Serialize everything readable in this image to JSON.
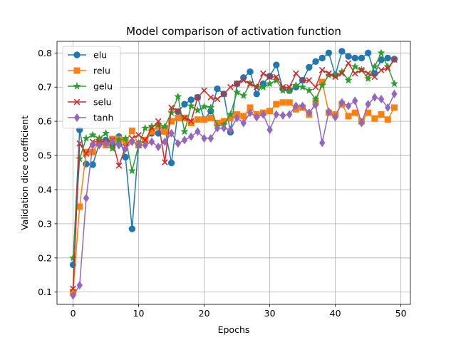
{
  "chart_data": {
    "type": "line",
    "title": "Model comparison of activation function",
    "xlabel": "Epochs",
    "ylabel": "Validation dice coefficient",
    "xlim": [
      -2.45,
      51.45
    ],
    "ylim": [
      0.064,
      0.834
    ],
    "xticks": [
      0,
      10,
      20,
      30,
      40,
      50
    ],
    "yticks": [
      0.1,
      0.2,
      0.3,
      0.4,
      0.5,
      0.6,
      0.7,
      0.8
    ],
    "ytick_labels": [
      "0.1",
      "0.2",
      "0.3",
      "0.4",
      "0.5",
      "0.6",
      "0.7",
      "0.8"
    ],
    "grid": true,
    "legend": "top-left",
    "x": [
      0,
      1,
      2,
      3,
      4,
      5,
      6,
      7,
      8,
      9,
      10,
      11,
      12,
      13,
      14,
      15,
      16,
      17,
      18,
      19,
      20,
      21,
      22,
      23,
      24,
      25,
      26,
      27,
      28,
      29,
      30,
      31,
      32,
      33,
      34,
      35,
      36,
      37,
      38,
      39,
      40,
      41,
      42,
      43,
      44,
      45,
      46,
      47,
      48,
      49
    ],
    "series": [
      {
        "name": "elu",
        "color": "#1f77b4",
        "marker": "circle",
        "values": [
          0.18,
          0.575,
          0.475,
          0.473,
          0.535,
          0.545,
          0.53,
          0.555,
          0.495,
          0.285,
          0.535,
          0.545,
          0.565,
          0.565,
          0.58,
          0.478,
          0.628,
          0.65,
          0.663,
          0.67,
          0.605,
          0.63,
          0.695,
          0.68,
          0.568,
          0.71,
          0.728,
          0.745,
          0.68,
          0.71,
          0.732,
          0.765,
          0.695,
          0.69,
          0.7,
          0.72,
          0.758,
          0.775,
          0.785,
          0.8,
          0.735,
          0.805,
          0.79,
          0.785,
          0.785,
          0.8,
          0.74,
          0.78,
          0.785,
          0.782
        ]
      },
      {
        "name": "relu",
        "color": "#ff7f0e",
        "marker": "square",
        "values": [
          0.1,
          0.35,
          0.51,
          0.51,
          0.54,
          0.53,
          0.548,
          0.548,
          0.54,
          0.572,
          0.53,
          0.545,
          0.57,
          0.585,
          0.57,
          0.6,
          0.61,
          0.61,
          0.595,
          0.605,
          0.605,
          0.61,
          0.595,
          0.6,
          0.61,
          0.62,
          0.615,
          0.64,
          0.62,
          0.625,
          0.63,
          0.65,
          0.655,
          0.655,
          0.635,
          0.64,
          0.62,
          0.655,
          0.715,
          0.625,
          0.62,
          0.65,
          0.615,
          0.625,
          0.6,
          0.625,
          0.608,
          0.62,
          0.605,
          0.64
        ]
      },
      {
        "name": "gelu",
        "color": "#2ca02c",
        "marker": "star",
        "values": [
          0.2,
          0.49,
          0.55,
          0.56,
          0.55,
          0.565,
          0.52,
          0.545,
          0.55,
          0.455,
          0.53,
          0.58,
          0.585,
          0.59,
          0.585,
          0.625,
          0.672,
          0.57,
          0.645,
          0.632,
          0.643,
          0.64,
          0.585,
          0.59,
          0.62,
          0.685,
          0.675,
          0.71,
          0.7,
          0.7,
          0.71,
          0.72,
          0.69,
          0.69,
          0.705,
          0.7,
          0.69,
          0.665,
          0.705,
          0.735,
          0.735,
          0.745,
          0.72,
          0.76,
          0.75,
          0.725,
          0.76,
          0.8,
          0.76,
          0.71
        ]
      },
      {
        "name": "selu",
        "color": "#d62728",
        "marker": "x",
        "values": [
          0.11,
          0.535,
          0.505,
          0.54,
          0.54,
          0.54,
          0.545,
          0.47,
          0.525,
          0.55,
          0.56,
          0.545,
          0.58,
          0.6,
          0.48,
          0.64,
          0.63,
          0.61,
          0.6,
          0.67,
          0.69,
          0.67,
          0.665,
          0.68,
          0.7,
          0.71,
          0.72,
          0.71,
          0.7,
          0.74,
          0.73,
          0.73,
          0.7,
          0.7,
          0.74,
          0.72,
          0.72,
          0.7,
          0.75,
          0.74,
          0.73,
          0.74,
          0.77,
          0.74,
          0.75,
          0.74,
          0.73,
          0.75,
          0.755,
          0.78
        ]
      },
      {
        "name": "tanh",
        "color": "#9467bd",
        "marker": "diamond",
        "values": [
          0.09,
          0.12,
          0.375,
          0.53,
          0.53,
          0.535,
          0.54,
          0.53,
          0.52,
          0.54,
          0.53,
          0.53,
          0.54,
          0.525,
          0.54,
          0.565,
          0.535,
          0.545,
          0.555,
          0.57,
          0.55,
          0.55,
          0.58,
          0.58,
          0.575,
          0.61,
          0.595,
          0.625,
          0.612,
          0.62,
          0.575,
          0.62,
          0.617,
          0.62,
          0.645,
          0.645,
          0.625,
          0.648,
          0.537,
          0.628,
          0.612,
          0.655,
          0.645,
          0.66,
          0.595,
          0.65,
          0.67,
          0.665,
          0.64,
          0.68
        ]
      }
    ]
  }
}
